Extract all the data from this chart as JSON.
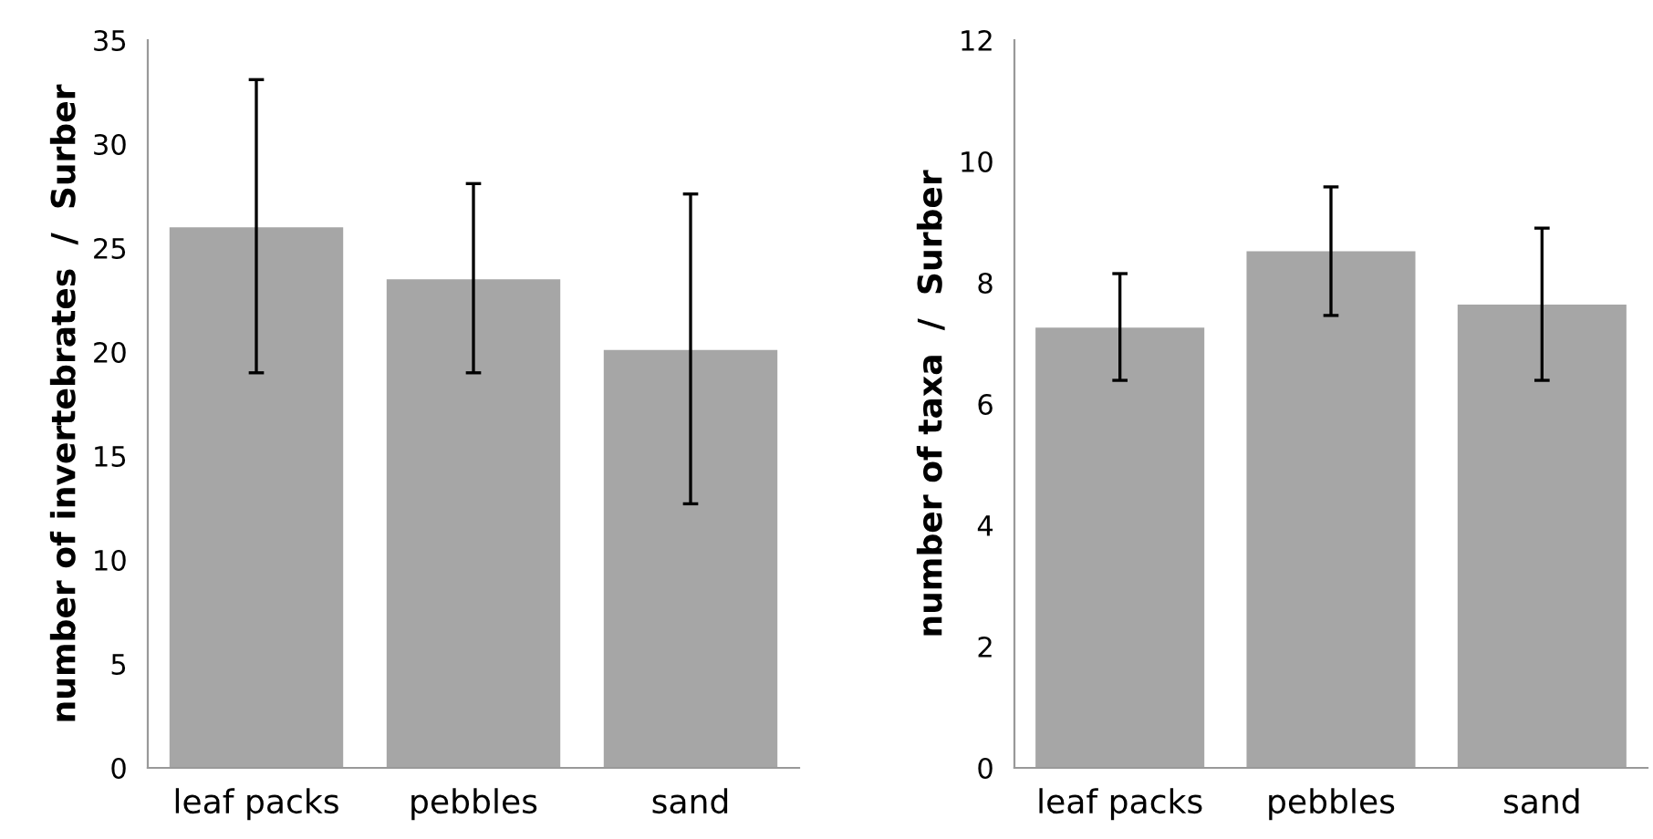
{
  "chart_data": [
    {
      "type": "bar",
      "ylabel": "number of invertebrates  /  Surber",
      "categories": [
        "leaf packs",
        "pebbles",
        "sand"
      ],
      "values": [
        26.0,
        23.5,
        20.1
      ],
      "errors": [
        [
          19.0,
          33.1
        ],
        [
          19.0,
          28.1
        ],
        [
          12.7,
          27.6
        ]
      ],
      "color": "#a6a6a6",
      "ylim": [
        0,
        35
      ],
      "yticks": [
        0,
        5,
        10,
        15,
        20,
        25,
        30,
        35
      ],
      "grid": false
    },
    {
      "type": "bar",
      "ylabel": "number of taxa  /  Surber",
      "categories": [
        "leaf packs",
        "pebbles",
        "sand"
      ],
      "values": [
        7.26,
        8.52,
        7.64
      ],
      "errors": [
        [
          6.39,
          8.15
        ],
        [
          7.46,
          9.58
        ],
        [
          6.39,
          8.9
        ]
      ],
      "color": "#a6a6a6",
      "ylim": [
        0,
        12
      ],
      "yticks": [
        0,
        2,
        4,
        6,
        8,
        10,
        12
      ],
      "grid": false
    }
  ]
}
